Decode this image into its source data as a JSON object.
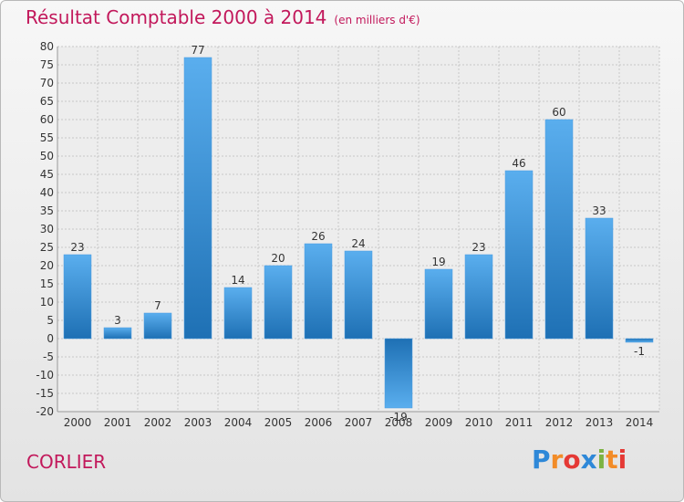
{
  "header": {
    "title": "Résultat Comptable 2000 à 2014",
    "unit": "(en milliers d'€)"
  },
  "footer": {
    "commune": "CORLIER",
    "logo_letters": [
      "P",
      "r",
      "o",
      "x",
      "i",
      "t",
      "i"
    ]
  },
  "colors": {
    "title": "#c2185b",
    "bar_light": "#5aaeee",
    "bar_dark": "#1e70b4"
  },
  "chart_data": {
    "type": "bar",
    "title": "Résultat Comptable 2000 à 2014",
    "categories": [
      "2000",
      "2001",
      "2002",
      "2003",
      "2004",
      "2005",
      "2006",
      "2007",
      "2008",
      "2009",
      "2010",
      "2011",
      "2012",
      "2013",
      "2014"
    ],
    "values": [
      23,
      3,
      7,
      77,
      14,
      20,
      26,
      24,
      -19,
      19,
      23,
      46,
      60,
      33,
      -1
    ],
    "data_labels": [
      "23",
      "3",
      "7",
      "77",
      "14",
      "20",
      "26",
      "24",
      "-19",
      "19",
      "23",
      "46",
      "60",
      "33",
      "-1"
    ],
    "ylim": [
      -20,
      80
    ],
    "yticks": [
      80,
      75,
      70,
      65,
      60,
      55,
      50,
      45,
      40,
      35,
      30,
      25,
      20,
      15,
      10,
      5,
      0,
      -5,
      -10,
      -15,
      -20
    ],
    "grid": true
  }
}
